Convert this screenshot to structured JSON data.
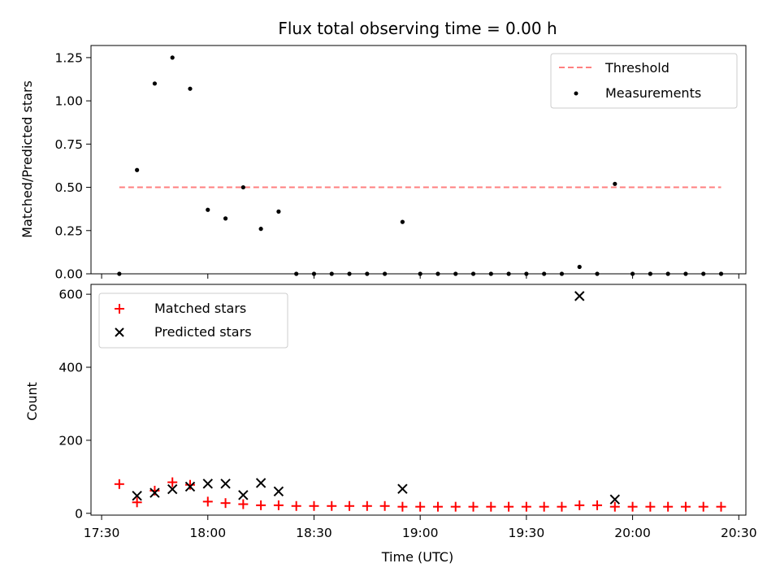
{
  "chart_data": [
    {
      "type": "scatter",
      "title": "Flux total observing time = 0.00 h",
      "xlabel": "",
      "ylabel": "Matched/Predicted stars",
      "ylim": [
        0,
        1.32
      ],
      "yticks": [
        0,
        0.25,
        0.5,
        0.75,
        1.0,
        1.25
      ],
      "ytick_labels": [
        "0.00",
        "0.25",
        "0.50",
        "0.75",
        "1.00",
        "1.25"
      ],
      "legend_position": "top-right",
      "threshold": {
        "name": "Threshold",
        "value": 0.5,
        "x_start": "17:35",
        "x_end": "20:25",
        "color": "#ff7f7f"
      },
      "series": [
        {
          "name": "Measurements",
          "color": "#000000",
          "marker": "dot",
          "x": [
            "17:35",
            "17:40",
            "17:45",
            "17:50",
            "17:55",
            "18:00",
            "18:05",
            "18:10",
            "18:15",
            "18:20",
            "18:25",
            "18:30",
            "18:35",
            "18:40",
            "18:45",
            "18:50",
            "18:55",
            "19:00",
            "19:05",
            "19:10",
            "19:15",
            "19:20",
            "19:25",
            "19:30",
            "19:35",
            "19:40",
            "19:45",
            "19:50",
            "19:55",
            "20:00",
            "20:05",
            "20:10",
            "20:15",
            "20:20",
            "20:25"
          ],
          "y": [
            0.0,
            0.6,
            1.1,
            1.25,
            1.07,
            0.37,
            0.32,
            0.5,
            0.26,
            0.36,
            0.0,
            0.0,
            0.0,
            0.0,
            0.0,
            0.0,
            0.3,
            0.0,
            0.0,
            0.0,
            0.0,
            0.0,
            0.0,
            0.0,
            0.0,
            0.0,
            0.04,
            0.0,
            0.52,
            0.0,
            0.0,
            0.0,
            0.0,
            0.0,
            0.0
          ]
        }
      ]
    },
    {
      "type": "scatter",
      "title": "",
      "xlabel": "Time (UTC)",
      "ylabel": "Count",
      "xlim": [
        "17:27",
        "20:32"
      ],
      "ylim": [
        -5,
        627
      ],
      "yticks": [
        0,
        200,
        400,
        600
      ],
      "ytick_labels": [
        "0",
        "200",
        "400",
        "600"
      ],
      "xticks": [
        "17:30",
        "18:00",
        "18:30",
        "19:00",
        "19:30",
        "20:00",
        "20:30"
      ],
      "legend_position": "top-left",
      "series": [
        {
          "name": "Matched stars",
          "color": "#ff0000",
          "marker": "plus",
          "x": [
            "17:35",
            "17:40",
            "17:45",
            "17:50",
            "17:55",
            "18:00",
            "18:05",
            "18:10",
            "18:15",
            "18:20",
            "18:25",
            "18:30",
            "18:35",
            "18:40",
            "18:45",
            "18:50",
            "18:55",
            "19:00",
            "19:05",
            "19:10",
            "19:15",
            "19:20",
            "19:25",
            "19:30",
            "19:35",
            "19:40",
            "19:45",
            "19:50",
            "19:55",
            "20:00",
            "20:05",
            "20:10",
            "20:15",
            "20:20",
            "20:25"
          ],
          "y": [
            80,
            30,
            62,
            85,
            78,
            32,
            28,
            25,
            22,
            22,
            20,
            20,
            20,
            20,
            20,
            20,
            18,
            18,
            18,
            18,
            18,
            18,
            18,
            18,
            18,
            18,
            22,
            22,
            18,
            18,
            18,
            18,
            18,
            18,
            18
          ]
        },
        {
          "name": "Predicted stars",
          "color": "#000000",
          "marker": "x",
          "x": [
            "17:40",
            "17:45",
            "17:50",
            "17:55",
            "18:00",
            "18:05",
            "18:10",
            "18:15",
            "18:20",
            "18:55",
            "19:45",
            "19:55"
          ],
          "y": [
            48,
            56,
            66,
            73,
            81,
            81,
            50,
            83,
            60,
            67,
            595,
            38
          ]
        }
      ]
    }
  ]
}
